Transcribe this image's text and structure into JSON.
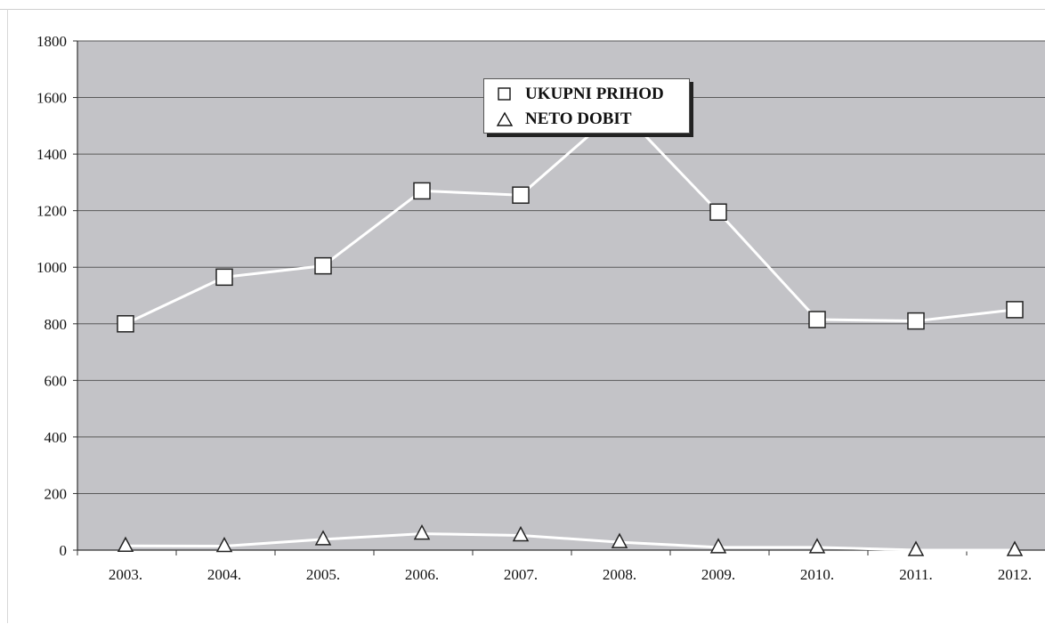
{
  "chart_data": {
    "type": "line",
    "categories": [
      "2003.",
      "2004.",
      "2005.",
      "2006.",
      "2007.",
      "2008.",
      "2009.",
      "2010.",
      "2011.",
      "2012."
    ],
    "series": [
      {
        "name": "UKUPNI PRIHOD",
        "marker": "square",
        "values": [
          800,
          965,
          1005,
          1270,
          1255,
          1560,
          1195,
          815,
          810,
          850
        ]
      },
      {
        "name": "NETO DOBIT",
        "marker": "triangle",
        "values": [
          15,
          14,
          38,
          58,
          52,
          28,
          10,
          10,
          0,
          0
        ]
      }
    ],
    "yticks": [
      "0",
      "200",
      "400",
      "600",
      "800",
      "1000",
      "1200",
      "1400",
      "1600",
      "1800"
    ],
    "ylim": [
      0,
      1800
    ],
    "title": "",
    "xlabel": "",
    "ylabel": "",
    "grid": true,
    "legend_position": "top-center",
    "colors": {
      "plot_background": "#c3c3c7",
      "gridline": "#5a5a5a",
      "line": "#ffffff",
      "marker_fill": "#ffffff",
      "marker_stroke": "#222222",
      "axis": "#333333"
    }
  }
}
